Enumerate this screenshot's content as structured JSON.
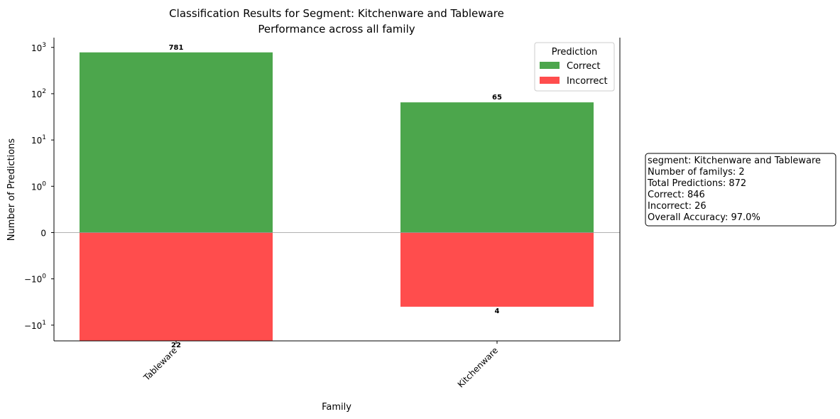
{
  "chart_data": {
    "type": "bar",
    "title": "Classification Results for Segment: Kitchenware and Tableware",
    "subtitle": "Performance across all family",
    "xlabel": "Family",
    "ylabel": "Number of Predictions",
    "yscale": "symlog",
    "ylim": [
      -22,
      1000
    ],
    "categories": [
      "Tableware",
      "Kitchenware"
    ],
    "series": [
      {
        "name": "Correct",
        "values": [
          781,
          65
        ],
        "color": "#4ca64c"
      },
      {
        "name": "Incorrect",
        "values": [
          22,
          4
        ],
        "color": "#ff4d4d"
      }
    ],
    "y_ticks": [
      {
        "value": 1000,
        "base": "10",
        "exp": "3"
      },
      {
        "value": 100,
        "base": "10",
        "exp": "2"
      },
      {
        "value": 10,
        "base": "10",
        "exp": "1"
      },
      {
        "value": 1,
        "base": "10",
        "exp": "0"
      },
      {
        "value": 0,
        "base": "0",
        "exp": ""
      },
      {
        "value": -1,
        "base": "−10",
        "exp": "0"
      },
      {
        "value": -10,
        "base": "−10",
        "exp": "1"
      }
    ],
    "legend": {
      "title": "Prediction",
      "entries": [
        "Correct",
        "Incorrect"
      ],
      "placement": "top-right"
    },
    "grid": false,
    "zero_line": true
  },
  "stats_box": {
    "lines": [
      "segment: Kitchenware and Tableware",
      "Number of familys: 2",
      "Total Predictions: 872",
      "Correct: 846",
      "Incorrect: 26",
      "Overall Accuracy: 97.0%"
    ]
  }
}
